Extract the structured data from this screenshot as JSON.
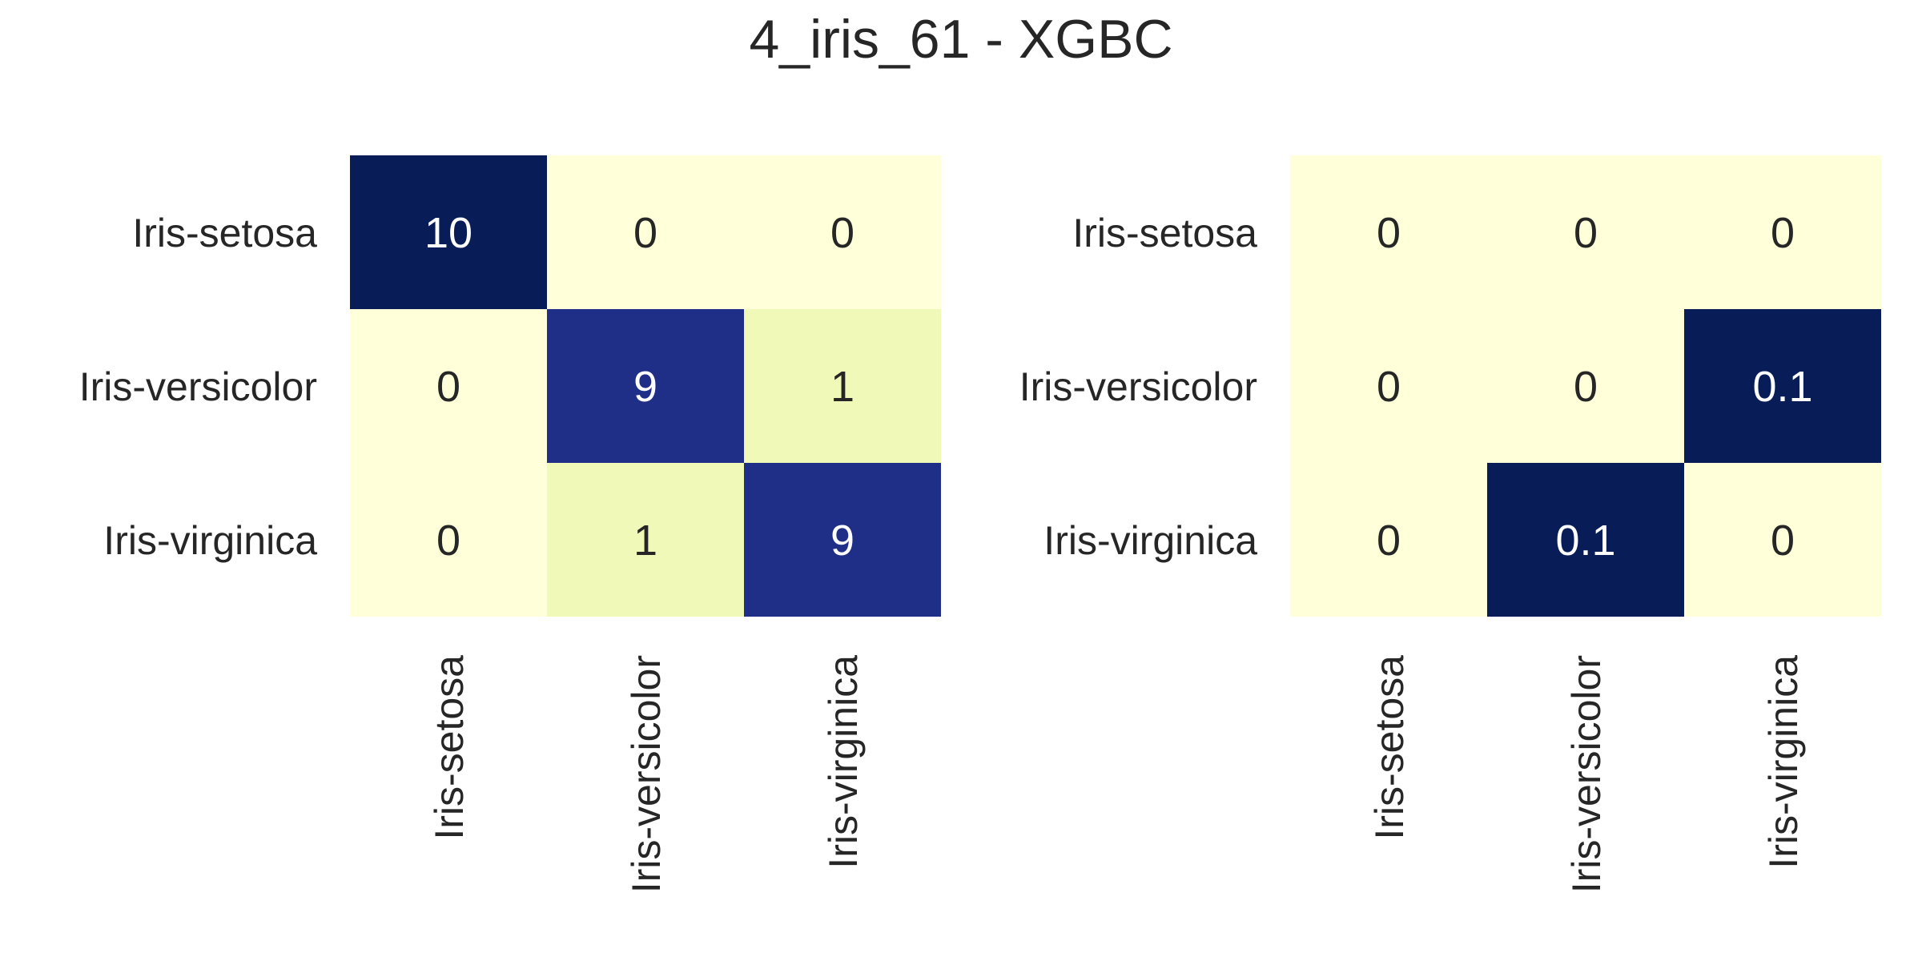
{
  "title": "4_iris_61 - XGBC",
  "chart_data": [
    {
      "type": "heatmap",
      "title": "",
      "x_labels": [
        "Iris-setosa",
        "Iris-versicolor",
        "Iris-virginica"
      ],
      "y_labels": [
        "Iris-setosa",
        "Iris-versicolor",
        "Iris-virginica"
      ],
      "values": [
        [
          10,
          0,
          0
        ],
        [
          0,
          9,
          1
        ],
        [
          0,
          1,
          9
        ]
      ],
      "value_labels": [
        [
          "10",
          "0",
          "0"
        ],
        [
          "0",
          "9",
          "1"
        ],
        [
          "0",
          "1",
          "9"
        ]
      ],
      "vmin": 0,
      "vmax": 10,
      "colormap": "YlGnBu",
      "colorbar": false,
      "grid": false
    },
    {
      "type": "heatmap",
      "title": "",
      "x_labels": [
        "Iris-setosa",
        "Iris-versicolor",
        "Iris-virginica"
      ],
      "y_labels": [
        "Iris-setosa",
        "Iris-versicolor",
        "Iris-virginica"
      ],
      "values": [
        [
          0,
          0,
          0
        ],
        [
          0,
          0,
          0.1
        ],
        [
          0,
          0.1,
          0
        ]
      ],
      "value_labels": [
        [
          "0",
          "0",
          "0"
        ],
        [
          "0",
          "0",
          "0.1"
        ],
        [
          "0",
          "0.1",
          "0"
        ]
      ],
      "vmin": 0,
      "vmax": 0.1,
      "colormap": "YlGnBu",
      "colorbar": false,
      "grid": false
    }
  ],
  "colors": {
    "low": "#ffffd9",
    "light": "#edf8b1",
    "high_9": "#213193",
    "max": "#081d58",
    "text_dark": "#262626",
    "text_light": "#ffffff"
  }
}
